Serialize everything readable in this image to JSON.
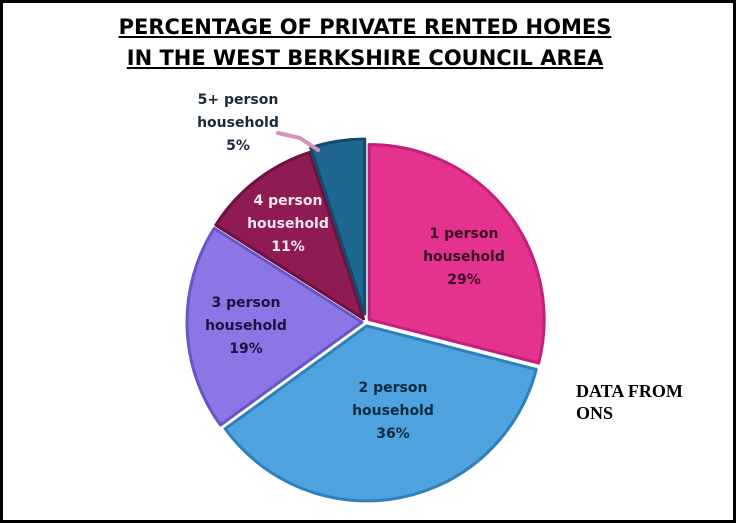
{
  "chart_data": {
    "type": "pie",
    "title_lines": [
      "PERCENTAGE OF PRIVATE RENTED HOMES",
      "IN THE WEST BERKSHIRE COUNCIL AREA"
    ],
    "annotation_lines": [
      "DATA FROM",
      "ONS"
    ],
    "slices": [
      {
        "category": "1 person household",
        "label_lines": [
          "1 person",
          "household"
        ],
        "value": 29,
        "value_label": "29%",
        "color": "#e4338f",
        "edge": "#c2207a",
        "text_color": "#3a0a22"
      },
      {
        "category": "2 person household",
        "label_lines": [
          "2 person",
          "household"
        ],
        "value": 36,
        "value_label": "36%",
        "color": "#4ea3de",
        "edge": "#2f7fbb",
        "text_color": "#0d2a40"
      },
      {
        "category": "3 person household",
        "label_lines": [
          "3 person",
          "household"
        ],
        "value": 19,
        "value_label": "19%",
        "color": "#8c76e6",
        "edge": "#6a55c7",
        "text_color": "#1c1240"
      },
      {
        "category": "4 person household",
        "label_lines": [
          "4 person",
          "household"
        ],
        "value": 11,
        "value_label": "11%",
        "color": "#8e1b52",
        "edge": "#6e1040",
        "text_color": "#f2e6ec"
      },
      {
        "category": "5+ person household",
        "label_lines": [
          "5+ person",
          "household"
        ],
        "value": 5,
        "value_label": "5%",
        "color": "#1f6790",
        "edge": "#124b6c",
        "text_color": "#1a2a3a"
      }
    ],
    "start_angle_deg": 0,
    "direction": "clockwise",
    "legend": "none"
  }
}
